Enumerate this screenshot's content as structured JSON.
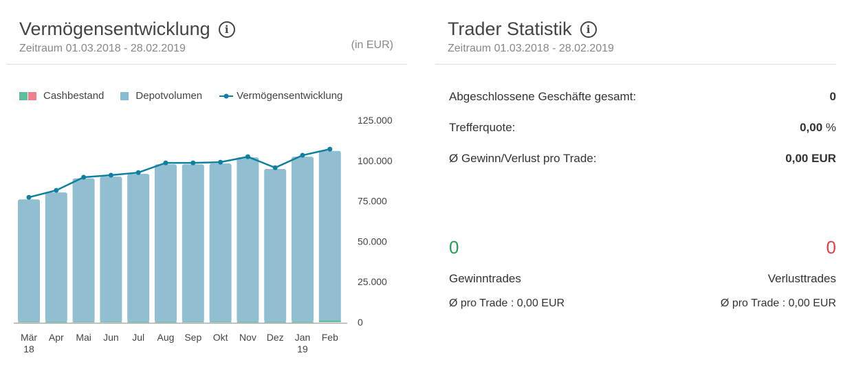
{
  "left": {
    "title": "Vermögensentwicklung",
    "period": "Zeitraum 01.03.2018 - 28.02.2019",
    "unit": "(in EUR)",
    "legend": {
      "cash": "Cashbestand",
      "depot": "Depotvolumen",
      "line": "Vermögensentwicklung"
    }
  },
  "chart_data": {
    "type": "bar",
    "title": "Vermögensentwicklung",
    "ylim": [
      0,
      125000
    ],
    "y_ticks": [
      "0",
      "25.000",
      "50.000",
      "75.000",
      "100.000",
      "125.000"
    ],
    "categories": [
      [
        "Mär",
        "18"
      ],
      [
        "Apr",
        ""
      ],
      [
        "Mai",
        ""
      ],
      [
        "Jun",
        ""
      ],
      [
        "Jul",
        ""
      ],
      [
        "Aug",
        ""
      ],
      [
        "Sep",
        ""
      ],
      [
        "Okt",
        ""
      ],
      [
        "Nov",
        ""
      ],
      [
        "Dez",
        ""
      ],
      [
        "Jan",
        "19"
      ],
      [
        "Feb",
        ""
      ]
    ],
    "series": [
      {
        "name": "Cashbestand",
        "type": "bar",
        "values": [
          300,
          200,
          300,
          300,
          200,
          200,
          300,
          300,
          200,
          200,
          200,
          1000
        ]
      },
      {
        "name": "Depotvolumen",
        "type": "bar",
        "values": [
          76000,
          80300,
          89000,
          90100,
          91800,
          97700,
          97700,
          98200,
          102000,
          94800,
          102400,
          106000
        ]
      },
      {
        "name": "Vermögensentwicklung",
        "type": "line",
        "values": [
          77300,
          81600,
          89700,
          91000,
          92600,
          98600,
          98600,
          99000,
          102400,
          95600,
          103300,
          107100
        ]
      }
    ],
    "colors": {
      "cash": "#5fbf9a",
      "cash_neg": "#f08090",
      "depot": "#91bed0",
      "line": "#0e7fa0"
    }
  },
  "right": {
    "title": "Trader Statistik",
    "period": "Zeitraum 01.03.2018 - 28.02.2019",
    "stats": [
      {
        "label": "Abgeschlossene Geschäfte gesamt:",
        "value": "0",
        "unit": ""
      },
      {
        "label": "Trefferquote:",
        "value": "0,00",
        "unit": " %"
      },
      {
        "label": "Ø Gewinn/Verlust pro Trade:",
        "value": "0,00 EUR",
        "unit": ""
      }
    ],
    "win": {
      "count": "0",
      "label": "Gewinntrades",
      "avg": "Ø pro Trade : 0,00 EUR",
      "color": "#2a9a5a"
    },
    "loss": {
      "count": "0",
      "label": "Verlusttrades",
      "avg": "Ø pro Trade : 0,00 EUR",
      "color": "#e0404a"
    }
  }
}
